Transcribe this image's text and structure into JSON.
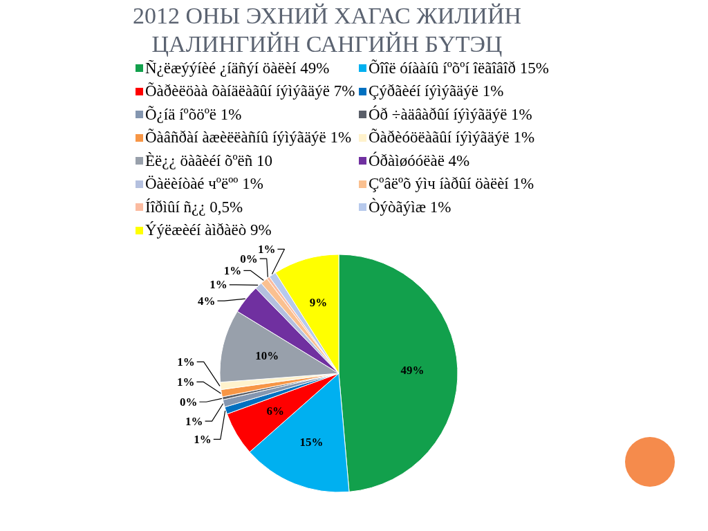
{
  "chart_data": {
    "type": "pie",
    "title": "2012 ОНЫ ЭХНИЙ ХАГАС ЖИЛИЙН ЦАЛИНГИЙН САНГИЙН БҮТЭЦ",
    "categories": [
      "Ñ¿ëæýýíèé ¿íäñýí öàëèí 49%",
      "Õîîë óíààíû íºõºí îëãîâîð 15%",
      "Õàðèëöàà õàíäëàãûí íýìýãäýë 7%",
      "Çýðãèéí íýìýãäýë 1%",
      "Õ¿íä íºõöºë 1%",
      "Óð ÷àäâàðûí íýìýãäýë 1%",
      "Õàâñðàí àæèëëàñíû íýìýãäýë 1%",
      "Õàðèóöëàãûí íýìýãäýë 1%",
      "Èë¿¿ öàãèéí õºëñ 10",
      "Óðàìøóóëàë 4%",
      "Öàëèíòàé чºëºº 1%",
      "Çºâëºõ ýìч íàðûí öàëèí 1%",
      "Íîðìûí ñ¿¿ 0,5%",
      "Òýòãýìæ 1%",
      "Ýýëæèéí àìðàëò 9%"
    ],
    "values": [
      49,
      15,
      6,
      1,
      1,
      0.4,
      1,
      1,
      10,
      4,
      1,
      1,
      0.4,
      1,
      9
    ],
    "value_labels": [
      "49%",
      "15%",
      "6%",
      "1%",
      "1%",
      "0%",
      "1%",
      "1%",
      "10%",
      "4%",
      "1%",
      "1%",
      "0%",
      "1%",
      "9%"
    ],
    "colors": [
      "#12a04c",
      "#00b0f0",
      "#ff0000",
      "#0070c0",
      "#8496b0",
      "#5a5f69",
      "#f79646",
      "#fff2cc",
      "#98a0ab",
      "#7030a0",
      "#b4c0df",
      "#fac090",
      "#fbbba0",
      "#b7c9ec",
      "#ffff00"
    ],
    "legend": "top"
  }
}
